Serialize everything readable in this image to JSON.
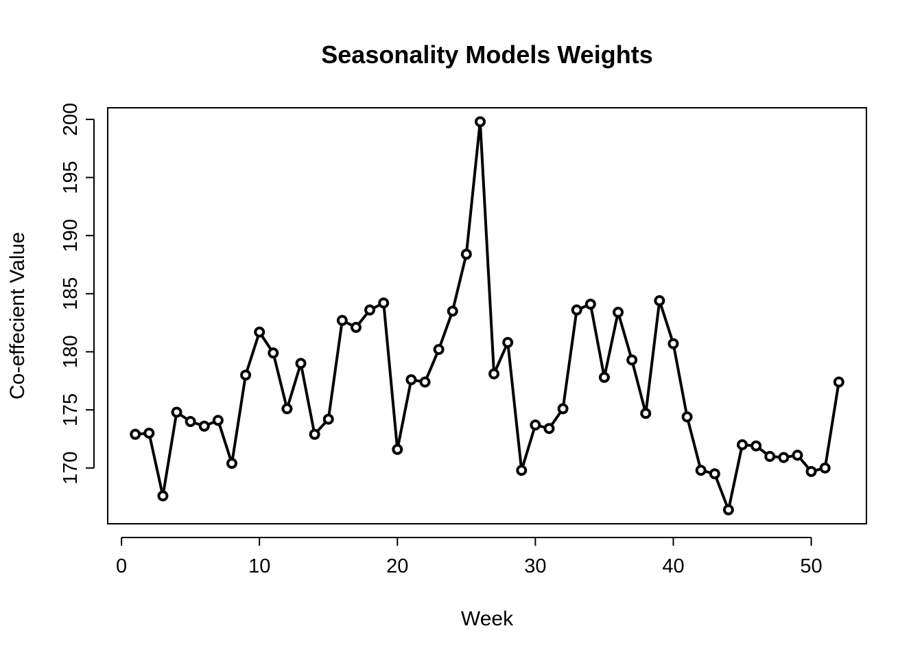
{
  "chart_data": {
    "type": "line",
    "title": "Seasonality Models Weights",
    "xlabel": "Week",
    "ylabel": "Co-effecient Value",
    "xlim": [
      -1,
      54
    ],
    "ylim": [
      165.2,
      201.0
    ],
    "x_ticks": [
      0,
      10,
      20,
      30,
      40,
      50
    ],
    "y_ticks": [
      170,
      175,
      180,
      185,
      190,
      195,
      200
    ],
    "x_tick_labels": [
      "0",
      "10",
      "20",
      "30",
      "40",
      "50"
    ],
    "y_tick_labels": [
      "170",
      "175",
      "180",
      "185",
      "190",
      "195",
      "200"
    ],
    "grid": false,
    "legend": "none",
    "series": [
      {
        "x": [
          1,
          2,
          3,
          4,
          5,
          6,
          7,
          8,
          9,
          10,
          11,
          12,
          13,
          14,
          15,
          16,
          17,
          18,
          19,
          20,
          21,
          22,
          23,
          24,
          25,
          26,
          27,
          28,
          29,
          30,
          31,
          32,
          33,
          34,
          35,
          36,
          37,
          38,
          39,
          40,
          41,
          42,
          43,
          44,
          45,
          46,
          47,
          48,
          49,
          50,
          51,
          52
        ],
        "values": [
          172.9,
          173.0,
          167.6,
          174.8,
          174.0,
          173.6,
          174.1,
          170.4,
          178.0,
          181.7,
          179.9,
          175.1,
          179.0,
          172.9,
          174.2,
          182.7,
          182.1,
          183.6,
          184.2,
          171.6,
          177.6,
          177.4,
          180.2,
          183.5,
          188.4,
          199.8,
          178.1,
          180.8,
          169.8,
          173.7,
          173.4,
          175.1,
          183.6,
          184.1,
          177.8,
          183.4,
          179.3,
          174.7,
          184.4,
          180.7,
          174.4,
          169.8,
          169.5,
          166.4,
          172.0,
          171.9,
          171.0,
          170.9,
          171.1,
          169.7,
          170.0,
          177.4
        ]
      }
    ]
  }
}
